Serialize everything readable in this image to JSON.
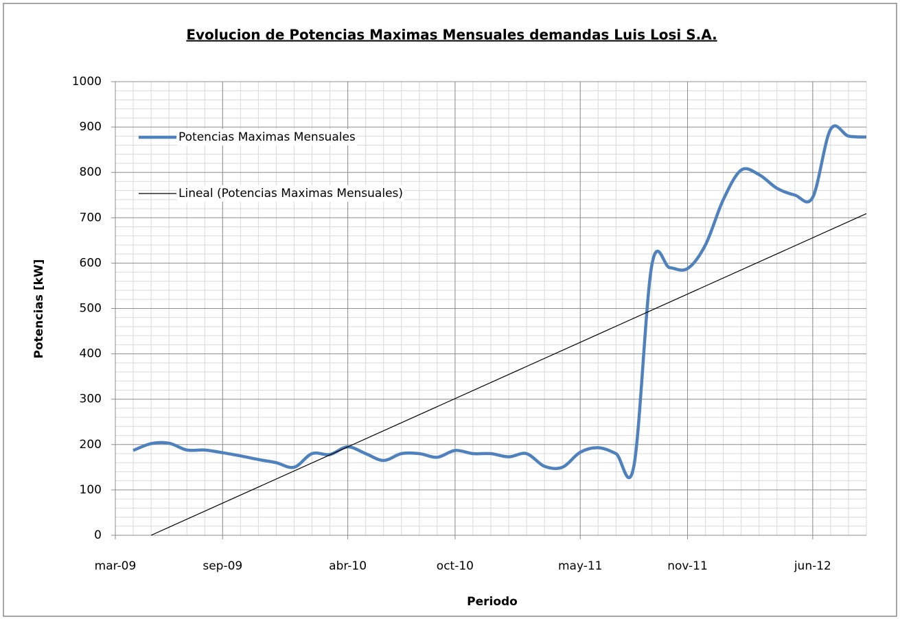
{
  "chart_data": {
    "type": "line",
    "title": "Evolucion de Potencias Maximas Mensuales demandas Luis Losi S.A.",
    "xlabel": "Periodo",
    "ylabel": "Potencias [kW]",
    "x": [
      "2009-04",
      "2009-05",
      "2009-06",
      "2009-07",
      "2009-08",
      "2009-09",
      "2009-10",
      "2009-11",
      "2009-12",
      "2010-01",
      "2010-02",
      "2010-03",
      "2010-04",
      "2010-05",
      "2010-06",
      "2010-07",
      "2010-08",
      "2010-09",
      "2010-10",
      "2010-11",
      "2010-12",
      "2011-01",
      "2011-02",
      "2011-03",
      "2011-04",
      "2011-05",
      "2011-06",
      "2011-07",
      "2011-08",
      "2011-09",
      "2011-10",
      "2011-11",
      "2011-12",
      "2012-01",
      "2012-02",
      "2012-03",
      "2012-04",
      "2012-05",
      "2012-06",
      "2012-07",
      "2012-08",
      "2012-09"
    ],
    "series": [
      {
        "name": "Potencias Maximas Mensuales",
        "color": "#4f81bd",
        "values": [
          187,
          202,
          203,
          188,
          188,
          182,
          175,
          167,
          160,
          150,
          180,
          178,
          195,
          180,
          165,
          180,
          180,
          172,
          187,
          180,
          180,
          173,
          180,
          152,
          150,
          183,
          193,
          180,
          153,
          595,
          590,
          588,
          640,
          740,
          805,
          795,
          765,
          750,
          745,
          895,
          880,
          878
        ]
      },
      {
        "name": "Lineal (Potencias Maximas Mensuales)",
        "color": "#000000",
        "x": [
          "2009-05",
          "2012-09"
        ],
        "values": [
          0,
          709
        ]
      }
    ],
    "xlim": [
      "2009-03",
      "2012-09"
    ],
    "xticks": [
      {
        "value": "2009-03",
        "label": "mar-09"
      },
      {
        "value": "2009-09",
        "label": "sep-09"
      },
      {
        "value": "2010-04",
        "label": "abr-10"
      },
      {
        "value": "2010-10",
        "label": "oct-10"
      },
      {
        "value": "2011-05",
        "label": "may-11"
      },
      {
        "value": "2011-11",
        "label": "nov-11"
      },
      {
        "value": "2012-06",
        "label": "jun-12"
      }
    ],
    "ylim": [
      0,
      1000
    ],
    "yticks": [
      0,
      100,
      200,
      300,
      400,
      500,
      600,
      700,
      800,
      900,
      1000
    ],
    "grid": true,
    "legend": "upper left"
  }
}
